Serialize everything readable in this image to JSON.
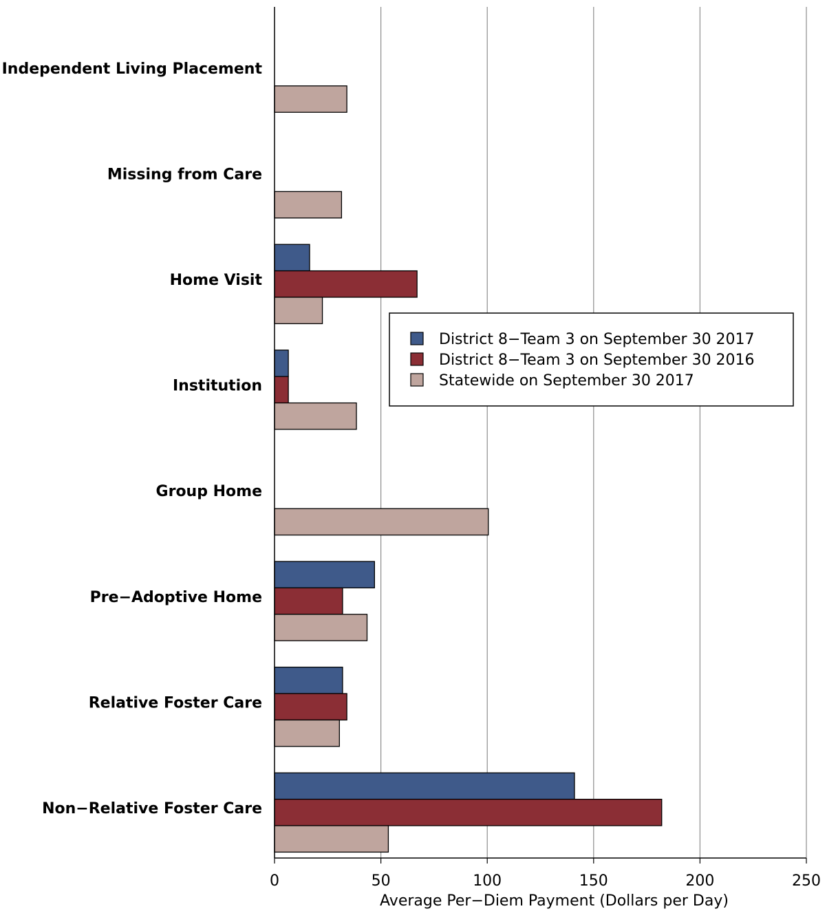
{
  "chart_data": {
    "type": "bar",
    "orientation": "horizontal",
    "categories": [
      "Independent Living Placement",
      "Missing from Care",
      "Home Visit",
      "Institution",
      "Group Home",
      "Pre−Adoptive Home",
      "Relative Foster Care",
      "Non−Relative Foster Care"
    ],
    "series": [
      {
        "name": "District 8−Team 3 on September 30 2017",
        "color": "#3f5a8a",
        "values": [
          0,
          0,
          16.5,
          6.5,
          0,
          47,
          32,
          141
        ]
      },
      {
        "name": "District 8−Team 3 on September 30 2016",
        "color": "#8b2e35",
        "values": [
          0,
          0,
          67,
          6.5,
          0,
          32,
          34,
          182
        ]
      },
      {
        "name": "Statewide on September 30 2017",
        "color": "#bfa59e",
        "values": [
          34,
          31.5,
          22.5,
          38.5,
          100.5,
          43.5,
          30.5,
          53.5
        ]
      }
    ],
    "xlabel": "Average Per−Diem Payment (Dollars per Day)",
    "xlim": [
      0,
      250
    ],
    "xticks": [
      0,
      50,
      100,
      150,
      200,
      250
    ],
    "xtick_labels": [
      "0",
      "50",
      "100",
      "150",
      "200",
      "250"
    ],
    "grid": "vertical",
    "legend_position": "center-right"
  }
}
